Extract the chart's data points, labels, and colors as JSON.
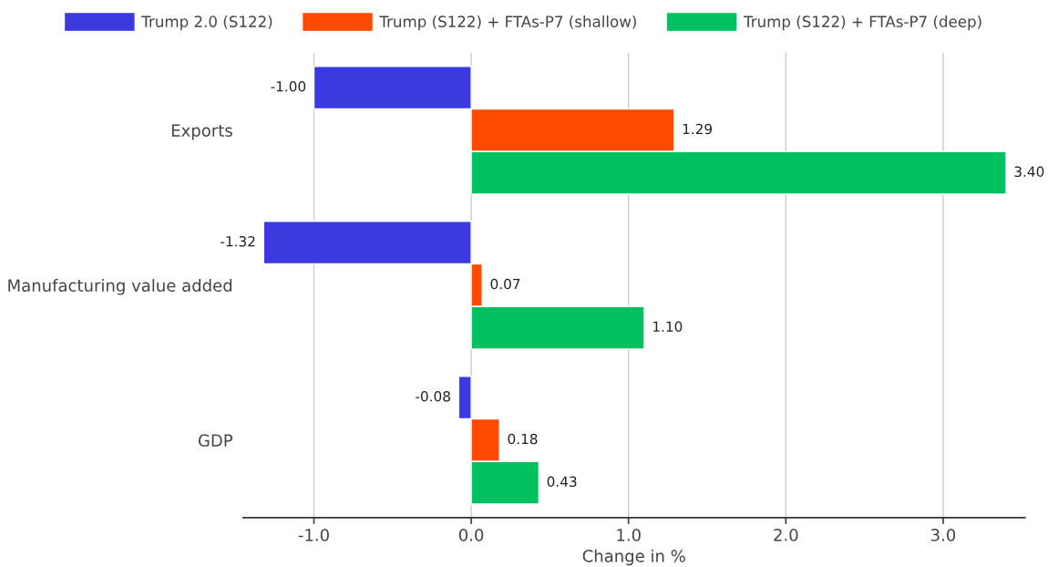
{
  "chart_data": {
    "type": "bar",
    "orientation": "horizontal",
    "xlabel": "Change in %",
    "categories": [
      "Exports",
      "Manufacturing value added",
      "GDP"
    ],
    "series": [
      {
        "name": "Trump 2.0 (S122)",
        "color": "#3a3adf",
        "values": [
          -1.0,
          -1.32,
          -0.08
        ],
        "value_labels": [
          "-1.00",
          "-1.32",
          "-0.08"
        ]
      },
      {
        "name": "Trump (S122) + FTAs-P7 (shallow)",
        "color": "#ff4a00",
        "values": [
          1.29,
          0.07,
          0.18
        ],
        "value_labels": [
          "1.29",
          "0.07",
          "0.18"
        ]
      },
      {
        "name": "Trump (S122) + FTAs-P7 (deep)",
        "color": "#00c060",
        "values": [
          3.4,
          1.1,
          0.43
        ],
        "value_labels": [
          "3.40",
          "1.10",
          "0.43"
        ]
      }
    ],
    "xlim": [
      -1.45,
      3.52
    ],
    "xticks": [
      {
        "value": -1,
        "label": "-1.0"
      },
      {
        "value": 0,
        "label": "0.0"
      },
      {
        "value": 1,
        "label": "1.0"
      },
      {
        "value": 2,
        "label": "2.0"
      },
      {
        "value": 3,
        "label": "3.0"
      }
    ],
    "grid": "x",
    "legend": "top"
  }
}
